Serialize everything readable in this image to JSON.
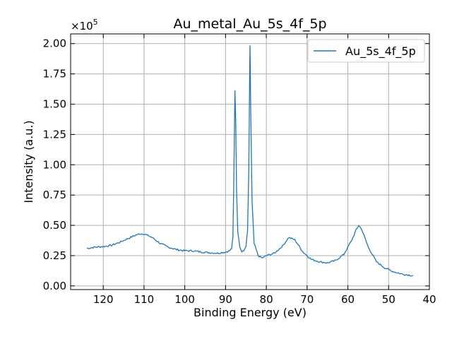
{
  "chart_data": {
    "type": "line",
    "title": "Au_metal_Au_5s_4f_5p",
    "xlabel": "Binding Energy (eV)",
    "ylabel": "Intensity (a.u.)",
    "y_multiplier_label": "×10",
    "y_multiplier_exponent": "5",
    "xlim": [
      128,
      40
    ],
    "ylim": [
      -0.03,
      2.08
    ],
    "x_reversed": true,
    "grid": true,
    "legend_position": "top-right",
    "x_ticks": [
      120,
      110,
      100,
      90,
      80,
      70,
      60,
      50,
      40
    ],
    "x_tick_labels": [
      "120",
      "110",
      "100",
      "90",
      "80",
      "70",
      "60",
      "50",
      "40"
    ],
    "y_ticks": [
      0,
      0.25,
      0.5,
      0.75,
      1.0,
      1.25,
      1.5,
      1.75,
      2.0
    ],
    "y_tick_labels": [
      "0.00",
      "0.25",
      "0.50",
      "0.75",
      "1.00",
      "1.25",
      "1.50",
      "1.75",
      "2.00"
    ],
    "series": [
      {
        "name": "Au_5s_4f_5p",
        "color": "#1f77b4",
        "x": [
          124,
          122,
          120,
          118,
          116,
          114,
          112,
          111,
          110,
          108,
          106,
          104,
          102,
          100,
          98,
          96,
          94,
          92,
          90,
          89,
          88.5,
          88.2,
          88,
          87.7,
          87.5,
          87.3,
          87,
          86.5,
          86,
          85.5,
          85,
          84.6,
          84.3,
          84.1,
          84,
          83.8,
          83.5,
          83,
          82,
          81,
          80,
          78,
          76,
          74.5,
          73,
          71,
          69,
          67,
          65,
          63,
          61,
          59,
          58,
          57.3,
          56.5,
          55,
          53,
          51,
          49,
          47,
          45,
          44
        ],
        "y": [
          0.31,
          0.32,
          0.325,
          0.335,
          0.36,
          0.39,
          0.42,
          0.43,
          0.43,
          0.4,
          0.35,
          0.32,
          0.3,
          0.29,
          0.29,
          0.28,
          0.275,
          0.27,
          0.28,
          0.29,
          0.31,
          0.4,
          0.8,
          1.62,
          1.35,
          0.8,
          0.45,
          0.32,
          0.28,
          0.29,
          0.33,
          0.45,
          0.95,
          1.7,
          1.98,
          1.4,
          0.7,
          0.35,
          0.25,
          0.23,
          0.25,
          0.27,
          0.33,
          0.4,
          0.38,
          0.28,
          0.22,
          0.2,
          0.19,
          0.21,
          0.26,
          0.38,
          0.46,
          0.5,
          0.46,
          0.32,
          0.2,
          0.15,
          0.12,
          0.1,
          0.09,
          0.085
        ]
      }
    ]
  }
}
